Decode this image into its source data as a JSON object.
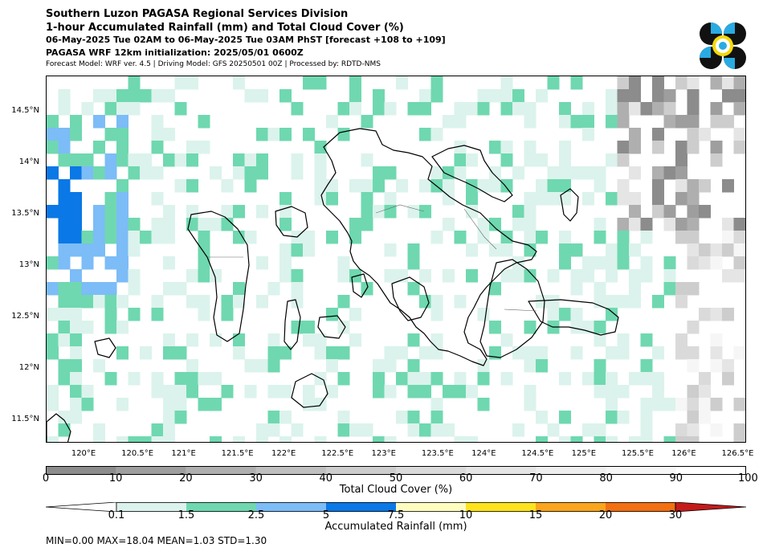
{
  "header": {
    "line1": "Southern Luzon PAGASA Regional Services Division",
    "line2": "1-hour Accumulated Rainfall (mm) and Total Cloud Cover (%)",
    "line3": "06-May-2025 Tue 02AM to 06-May-2025 Tue 03AM PhST [forecast +108 to +109]",
    "line4": "PAGASA WRF 12km initialization: 2025/05/01 0600Z",
    "line5": "Forecast Model: WRF ver. 4.5 | Driving Model: GFS 20250501 00Z | Processed by: RDTD-NMS"
  },
  "logo": {
    "icon": "pagasa-logo-icon",
    "colors": [
      "#111111",
      "#29abe2",
      "#f5d90a"
    ]
  },
  "map": {
    "lon_range": [
      119.6,
      126.6
    ],
    "lat_range": [
      11.28,
      14.85
    ],
    "lon_ticks": [
      "120°E",
      "120.5°E",
      "121°E",
      "121.5°E",
      "122°E",
      "122.5°E",
      "123°E",
      "123.5°E",
      "124°E",
      "124.5°E",
      "125°E",
      "125.5°E",
      "126°E",
      "126.5°E"
    ],
    "lon_values": [
      120.0,
      120.5,
      121.0,
      121.5,
      122.0,
      122.5,
      123.0,
      123.5,
      124.0,
      124.5,
      125.0,
      125.5,
      126.0,
      126.5
    ],
    "lat_ticks": [
      "14.5°N",
      "14°N",
      "13.5°N",
      "13°N",
      "12.5°N",
      "12°N",
      "11.5°N"
    ],
    "lat_values": [
      14.5,
      14.0,
      13.5,
      13.0,
      12.5,
      12.0,
      11.5
    ]
  },
  "cloud_colorbar": {
    "title": "Total Cloud Cover (%)",
    "labels": [
      "0",
      "10",
      "20",
      "30",
      "40",
      "50",
      "60",
      "70",
      "80",
      "90",
      "100"
    ],
    "colors": [
      "#8c8c8c",
      "#9e9e9e",
      "#afafaf",
      "#bfbfbf",
      "#cdcdcd",
      "#dadada",
      "#e5e5e5",
      "#eeeeee",
      "#f6f6f6",
      "#ffffff"
    ]
  },
  "rain_colorbar": {
    "title": "Accumulated Rainfall (mm)",
    "labels": [
      "0.1",
      "1.5",
      "2.5",
      "5",
      "7.5",
      "10",
      "15",
      "20",
      "30"
    ],
    "colors": [
      "#dbf3ec",
      "#6fd8b0",
      "#7cbcf7",
      "#0a78e6",
      "#fdfdc0",
      "#fde31e",
      "#f9a51d",
      "#f26f12",
      "#c41a1a"
    ],
    "under_color": "#ffffff",
    "over_color": "#c41a1a"
  },
  "stats": "MIN=0.00   MAX=18.04   MEAN=1.03   STD=1.30"
}
